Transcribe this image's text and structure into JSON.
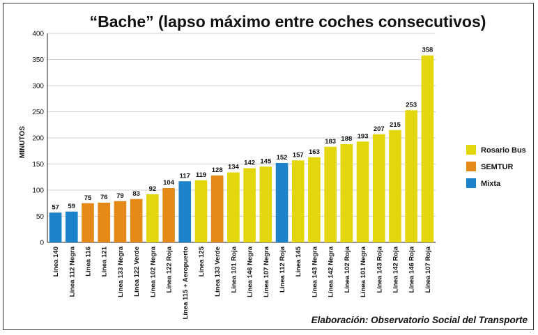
{
  "chart_data": {
    "type": "bar",
    "title": "“Bache” (lapso máximo entre coches consecutivos)",
    "ylabel": "MINUTOS",
    "xlabel": "",
    "ylim": [
      0,
      400
    ],
    "yticks": [
      0,
      50,
      100,
      150,
      200,
      250,
      300,
      350,
      400
    ],
    "grid": true,
    "legend_position": "right",
    "categories": [
      "Línea 140",
      "Línea 112 Negra",
      "Línea 116",
      "Línea 121",
      "Línea 133 Negra",
      "Línea 122 Verde",
      "Línea 102 Negra",
      "Línea 122 Roja",
      "Línea 115 + Aeropuerto",
      "Línea 125",
      "Línea 133 Verde",
      "Línea 101 Roja",
      "Línea 146 Negra",
      "Línea 107 Negra",
      "Línea 112 Roja",
      "Línea 145",
      "Línea 143 Negra",
      "Línea 142 Negra",
      "Línea 102 Roja",
      "Línea 101 Negra",
      "Línea 143 Roja",
      "Línea 142 Roja",
      "Línea 146 Roja",
      "Línea 107 Roja"
    ],
    "values": [
      57,
      59,
      75,
      76,
      79,
      83,
      92,
      104,
      117,
      119,
      128,
      134,
      142,
      145,
      152,
      157,
      163,
      183,
      188,
      193,
      207,
      215,
      253,
      358
    ],
    "groups": [
      "Mixta",
      "Mixta",
      "SEMTUR",
      "SEMTUR",
      "SEMTUR",
      "SEMTUR",
      "Rosario Bus",
      "SEMTUR",
      "Mixta",
      "Rosario Bus",
      "SEMTUR",
      "Rosario Bus",
      "Rosario Bus",
      "Rosario Bus",
      "Mixta",
      "Rosario Bus",
      "Rosario Bus",
      "Rosario Bus",
      "Rosario Bus",
      "Rosario Bus",
      "Rosario Bus",
      "Rosario Bus",
      "Rosario Bus",
      "Rosario Bus"
    ],
    "legend": [
      {
        "name": "Rosario Bus",
        "color": "#e3d60c"
      },
      {
        "name": "SEMTUR",
        "color": "#e58a19"
      },
      {
        "name": "Mixta",
        "color": "#1c82c9"
      }
    ]
  },
  "footer": {
    "credit": "Elaboración: Observatorio Social del Transporte"
  }
}
